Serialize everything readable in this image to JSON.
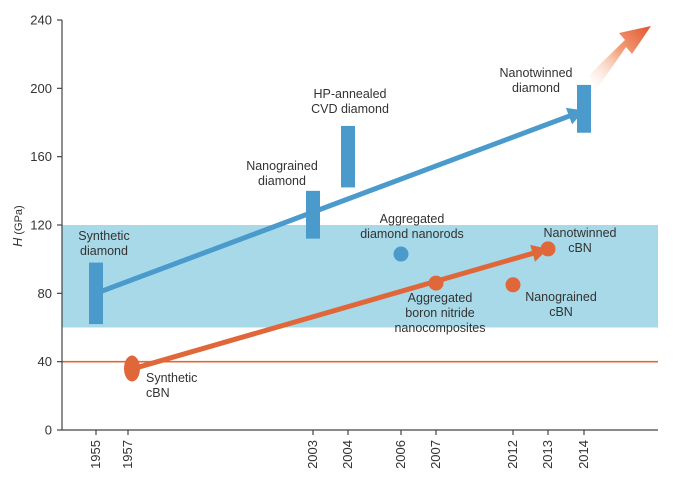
{
  "chart_data": {
    "type": "scatter",
    "ylabel_var": "H",
    "ylabel_unit": "(GPa)",
    "ylim": [
      0,
      240
    ],
    "yticks": [
      0,
      40,
      80,
      120,
      160,
      200,
      240
    ],
    "xticks": [
      1955,
      1957,
      2003,
      2004,
      2006,
      2007,
      2012,
      2013,
      2014
    ],
    "x_order": [
      1955,
      1957,
      2003,
      2004,
      2006,
      2007,
      2012,
      2013,
      2014
    ],
    "shaded_band": [
      60,
      120
    ],
    "reference_line": 40,
    "grid": false,
    "colors": {
      "diamond": "#4a9bcc",
      "cbn": "#e0673a",
      "band": "#a8d9e8",
      "refline": "#e0673a",
      "axis": "#444444"
    },
    "diamond_bars": [
      {
        "x": 1955,
        "low": 62,
        "high": 98,
        "label": [
          "Synthetic",
          "diamond"
        ]
      },
      {
        "x": 2003,
        "low": 112,
        "high": 140,
        "label": [
          "Nanograined",
          "diamond"
        ]
      },
      {
        "x": 2004,
        "low": 142,
        "high": 178,
        "label": [
          "HP-annealed",
          "CVD diamond"
        ]
      },
      {
        "x": 2014,
        "low": 174,
        "high": 202,
        "label": [
          "Nanotwinned",
          "diamond"
        ]
      }
    ],
    "diamond_points": [
      {
        "x": 2006,
        "y": 103,
        "label": [
          "Aggregated",
          "diamond nanorods"
        ]
      }
    ],
    "cbn_points": [
      {
        "x": 1957,
        "y": 36,
        "label": [
          "Synthetic",
          "cBN"
        ],
        "ellipse": true
      },
      {
        "x": 2007,
        "y": 86,
        "label": [
          "Aggregated",
          "boron nitride",
          "nanocomposites"
        ]
      },
      {
        "x": 2012,
        "y": 85,
        "label": [
          "Nanograined",
          "cBN"
        ]
      },
      {
        "x": 2013,
        "y": 106,
        "label": [
          "Nanotwinned",
          "cBN"
        ]
      }
    ],
    "trend_diamond": {
      "from": [
        1955,
        80
      ],
      "to": [
        2014,
        187
      ]
    },
    "trend_cbn": {
      "from": [
        1957,
        35
      ],
      "to": [
        2013,
        106
      ]
    }
  }
}
